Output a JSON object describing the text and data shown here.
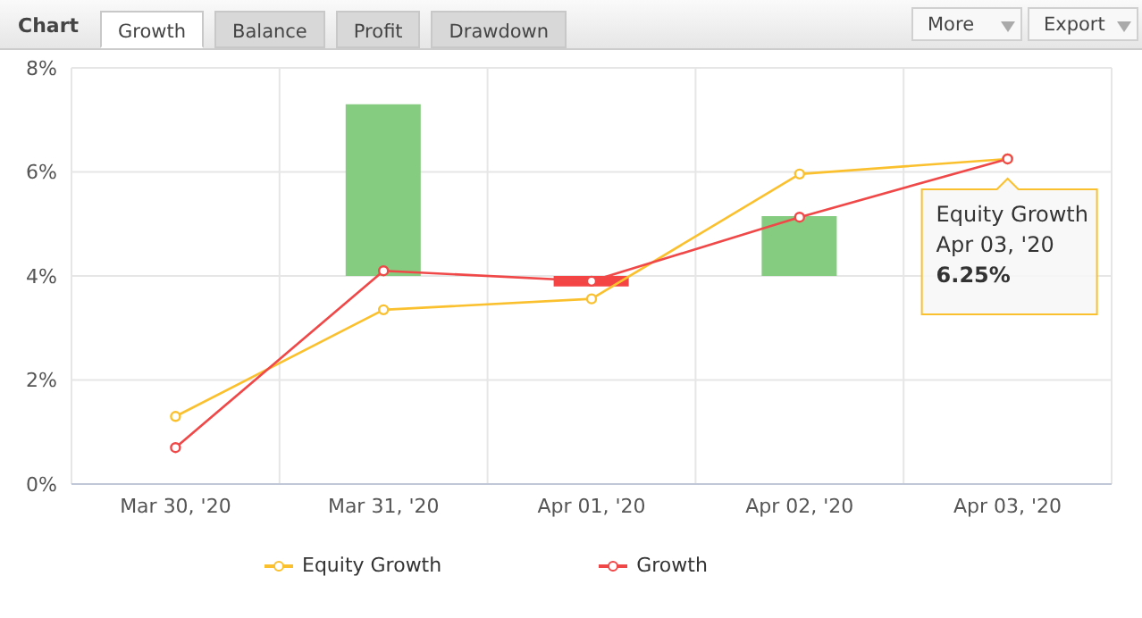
{
  "chart_data": {
    "type": "line",
    "title": "Chart",
    "categories": [
      "Mar 30, '20",
      "Mar 31, '20",
      "Apr 01, '20",
      "Apr 02, '20",
      "Apr 03, '20"
    ],
    "series": [
      {
        "type": "bar",
        "colors": [
          "#86cc80",
          "#86cc80",
          "#f44444",
          "#86cc80",
          "#86cc80"
        ],
        "base": [
          null,
          4,
          4,
          4,
          null
        ],
        "values": [
          null,
          3.3,
          -0.2,
          1.15,
          null
        ]
      },
      {
        "name": "Equity Growth",
        "color": "#fbc02d",
        "values": [
          1.3,
          3.35,
          3.56,
          5.96,
          6.25
        ]
      },
      {
        "name": "Growth",
        "color": "#f04848",
        "values": [
          0.7,
          4.1,
          3.9,
          5.13,
          6.25
        ]
      }
    ],
    "ylim": [
      0,
      8
    ],
    "yticks": [
      {
        "value": 0,
        "label": "0%"
      },
      {
        "value": 2,
        "label": "2%"
      },
      {
        "value": 4,
        "label": "4%"
      },
      {
        "value": 6,
        "label": "6%"
      },
      {
        "value": 8,
        "label": "8%"
      }
    ],
    "grid": true,
    "legend": "bottom",
    "marker": "circle",
    "line_style": "solid",
    "annotations": [
      {
        "text": "Equity Growth\nApr 03, '20\n6.25%",
        "x": "Apr 03, '20",
        "y": 6.25
      },
      "Growth",
      "Balance",
      "Profit",
      "Drawdown",
      "More",
      "Export"
    ]
  }
}
